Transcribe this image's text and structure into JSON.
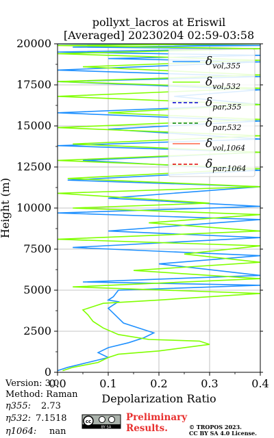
{
  "chart_data": {
    "type": "line",
    "title_line1": "pollyxt_lacros at Eriswil",
    "title_line2": "[Averaged] 20230204 02:59-03:58",
    "xlabel": "Depolarization Ratio",
    "ylabel": "Height (m)",
    "xlim": [
      0,
      0.4
    ],
    "ylim": [
      0,
      20000
    ],
    "xticks": [
      "0.0",
      "0.1",
      "0.2",
      "0.3",
      "0.4"
    ],
    "yticks": [
      "0",
      "2500",
      "5000",
      "7500",
      "10000",
      "12500",
      "15000",
      "17500",
      "20000"
    ],
    "xtick_values": [
      0,
      0.1,
      0.2,
      0.3,
      0.4
    ],
    "ytick_values": [
      0,
      2500,
      5000,
      7500,
      10000,
      12500,
      15000,
      17500,
      20000
    ],
    "grid": true,
    "legend_placement": "top-right",
    "series": [
      {
        "name": "δ_vol,355",
        "legend_main": "δ",
        "legend_sub": "vol,355",
        "color": "#1e90ff",
        "style": "solid",
        "x": [
          0.0,
          0.02,
          0.06,
          0.1,
          0.08,
          0.1,
          0.14,
          0.17,
          0.19,
          0.16,
          0.13,
          0.12,
          0.11,
          0.1,
          0.11,
          0.12,
          0.1,
          0.11,
          0.12,
          0.4,
          0.05,
          0.4,
          0.2,
          0.4,
          0.03,
          0.4,
          0.1,
          0.4,
          0.0,
          0.4,
          0.1,
          0.4,
          0.02,
          0.4,
          0.05,
          0.4,
          0.0,
          0.4,
          0.1,
          0.4,
          0.0,
          0.4,
          0.23,
          0.4,
          0.0,
          0.4,
          0.0,
          0.4,
          0.1,
          0.4,
          0.0,
          0.4,
          0.03,
          0.4,
          0.0,
          0.4
        ],
        "y": [
          100,
          300,
          600,
          900,
          1200,
          1500,
          1800,
          2100,
          2400,
          2700,
          3000,
          3300,
          3600,
          3900,
          4100,
          4300,
          4400,
          4600,
          5000,
          5300,
          5500,
          5900,
          6600,
          7100,
          7600,
          8200,
          8600,
          9300,
          9700,
          10100,
          10600,
          11300,
          11700,
          12300,
          12900,
          13400,
          13800,
          14200,
          14800,
          15300,
          15800,
          16300,
          16800,
          17200,
          17700,
          18000,
          18400,
          18900,
          19100,
          19300,
          19500,
          19700,
          19800,
          19900,
          20000,
          20000
        ]
      },
      {
        "name": "δ_vol,532",
        "legend_main": "δ",
        "legend_sub": "vol,532",
        "color": "#80ff00",
        "style": "solid",
        "x": [
          0.01,
          0.03,
          0.08,
          0.1,
          0.12,
          0.2,
          0.3,
          0.28,
          0.18,
          0.12,
          0.09,
          0.07,
          0.06,
          0.05,
          0.07,
          0.09,
          0.2,
          0.4,
          0.03,
          0.4,
          0.15,
          0.4,
          0.25,
          0.4,
          0.0,
          0.4,
          0.18,
          0.4,
          0.03,
          0.3,
          0.0,
          0.4,
          0.02,
          0.4,
          0.0,
          0.4,
          0.03,
          0.4,
          0.0,
          0.4,
          0.1,
          0.4,
          0.0,
          0.4,
          0.0,
          0.4,
          0.05,
          0.4,
          0.0,
          0.4,
          0.0,
          0.4
        ],
        "y": [
          100,
          300,
          600,
          900,
          1100,
          1300,
          1700,
          1900,
          2000,
          2300,
          2700,
          3100,
          3500,
          3800,
          4000,
          4200,
          4400,
          4800,
          5200,
          5700,
          6200,
          6700,
          7200,
          7700,
          8100,
          8600,
          9100,
          9600,
          10000,
          10300,
          10900,
          11300,
          11800,
          12400,
          12900,
          13400,
          13900,
          14400,
          14900,
          15400,
          15800,
          16300,
          16800,
          17300,
          17700,
          18100,
          18600,
          19000,
          19400,
          19700,
          19900,
          20000
        ]
      },
      {
        "name": "δ_par,355",
        "legend_main": "δ",
        "legend_sub": "par,355",
        "color": "#0000cd",
        "style": "dashed",
        "x": [],
        "y": []
      },
      {
        "name": "δ_par,532",
        "legend_main": "δ",
        "legend_sub": "par,532",
        "color": "#008000",
        "style": "dashed",
        "x": [],
        "y": []
      },
      {
        "name": "δ_vol,1064",
        "legend_main": "δ",
        "legend_sub": "vol,1064",
        "color": "#ff6347",
        "style": "solid",
        "x": [],
        "y": []
      },
      {
        "name": "δ_par,1064",
        "legend_main": "δ",
        "legend_sub": "par,1064",
        "color": "#e00000",
        "style": "dashed",
        "x": [],
        "y": []
      }
    ]
  },
  "footer": {
    "version": "Version: 3.0",
    "method": "Method: Raman",
    "eta355_label": "η355:",
    "eta355_value": "2.73",
    "eta532_label": "η532:",
    "eta532_value": "7.1518",
    "eta1064_label": "η1064:",
    "eta1064_value": "nan",
    "preliminary_line1": "Preliminary",
    "preliminary_line2": "Results.",
    "license_line1": "© TROPOS 2023.",
    "license_line2": "CC BY SA 4.0 License.",
    "cc_badge_text": "cc",
    "cc_badge_caption": "BY SA"
  }
}
